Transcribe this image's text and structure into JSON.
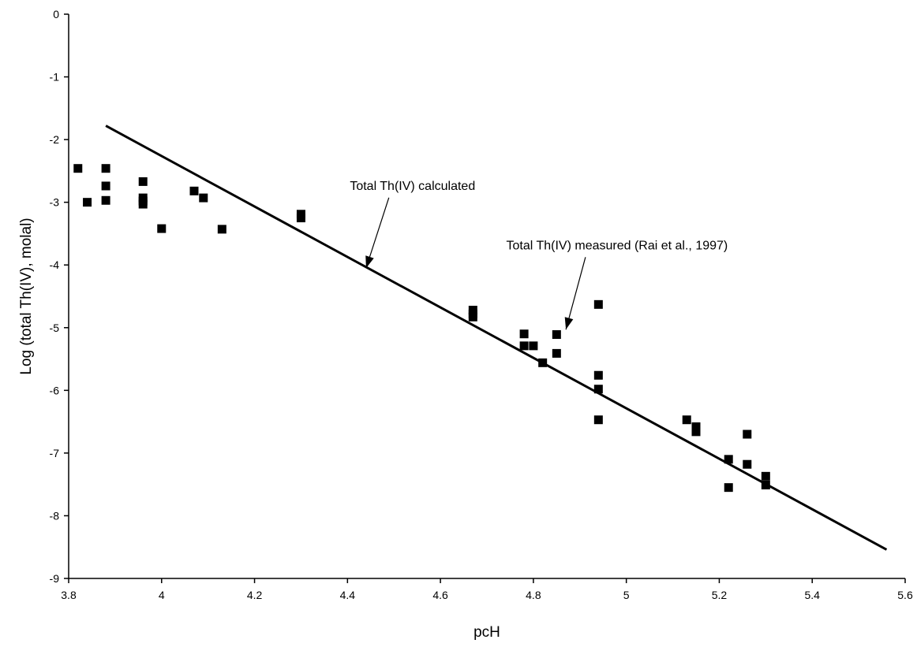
{
  "chart_data": {
    "type": "scatter",
    "title": "",
    "xlabel": "pcH",
    "ylabel": "Log (total Th(IV), molal)",
    "xlim": [
      3.8,
      5.6
    ],
    "ylim": [
      -9,
      0
    ],
    "x_ticks": [
      "3.8",
      "4",
      "4.2",
      "4.4",
      "4.6",
      "4.8",
      "5",
      "5.2",
      "5.4",
      "5.6"
    ],
    "y_ticks": [
      "0",
      "-1",
      "-2",
      "-3",
      "-4",
      "-5",
      "-6",
      "-7",
      "-8",
      "-9"
    ],
    "grid": false,
    "legend": "none",
    "series": [
      {
        "type": "line",
        "color": "#000000",
        "x": [
          3.88,
          5.56
        ],
        "y": [
          -1.78,
          -8.54
        ]
      },
      {
        "type": "scatter",
        "marker": "square",
        "color": "#000000",
        "points": [
          [
            3.82,
            -2.46
          ],
          [
            3.84,
            -3.0
          ],
          [
            3.88,
            -2.46
          ],
          [
            3.88,
            -2.74
          ],
          [
            3.88,
            -2.97
          ],
          [
            3.96,
            -2.67
          ],
          [
            3.96,
            -2.93
          ],
          [
            3.96,
            -2.98
          ],
          [
            3.96,
            -3.03
          ],
          [
            4.0,
            -3.42
          ],
          [
            4.07,
            -2.82
          ],
          [
            4.09,
            -2.93
          ],
          [
            4.13,
            -3.43
          ],
          [
            4.3,
            -3.19
          ],
          [
            4.3,
            -3.25
          ],
          [
            4.67,
            -4.72
          ],
          [
            4.67,
            -4.78
          ],
          [
            4.67,
            -4.83
          ],
          [
            4.78,
            -5.1
          ],
          [
            4.78,
            -5.29
          ],
          [
            4.8,
            -5.29
          ],
          [
            4.82,
            -5.56
          ],
          [
            4.85,
            -5.11
          ],
          [
            4.85,
            -5.41
          ],
          [
            4.94,
            -4.63
          ],
          [
            4.94,
            -5.76
          ],
          [
            4.94,
            -5.98
          ],
          [
            4.94,
            -6.47
          ],
          [
            5.13,
            -6.47
          ],
          [
            5.15,
            -6.58
          ],
          [
            5.15,
            -6.66
          ],
          [
            5.22,
            -7.1
          ],
          [
            5.22,
            -7.55
          ],
          [
            5.26,
            -6.7
          ],
          [
            5.26,
            -7.18
          ],
          [
            5.3,
            -7.37
          ],
          [
            5.3,
            -7.51
          ]
        ]
      }
    ],
    "annotations": [
      {
        "text": "Total Th(IV) calculated",
        "x": 4.54,
        "y": -2.8,
        "arrow_to": [
          4.44,
          -4.05
        ]
      },
      {
        "text": "Total Th(IV) measured (Rai et al., 1997)",
        "x": 4.98,
        "y": -3.75,
        "arrow_to": [
          4.87,
          -5.03
        ]
      }
    ]
  }
}
